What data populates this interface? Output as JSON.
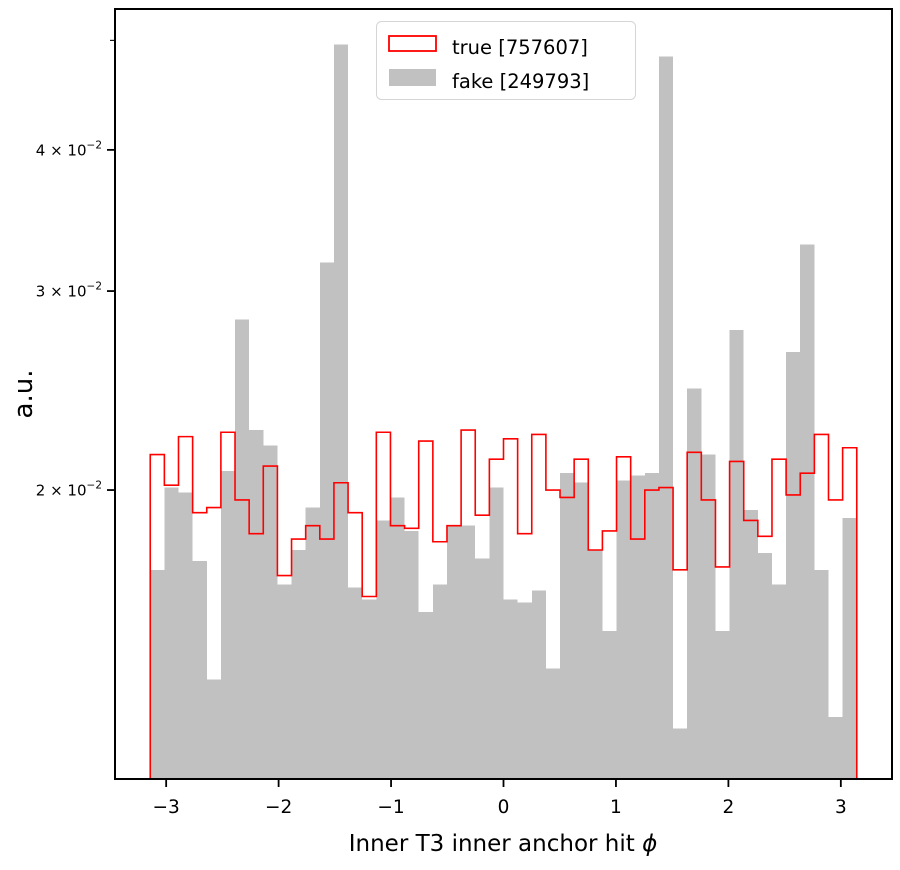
{
  "chart_data": {
    "type": "bar",
    "subtype": "histogram-step-and-filled",
    "title": "",
    "xlabel": "Inner T3 inner anchor hit ",
    "xlabel_symbol": "ϕ",
    "ylabel": "a.u.",
    "x_scale": "linear",
    "y_scale": "log",
    "xlim": [
      -3.455,
      3.455
    ],
    "ylim": [
      0.0111,
      0.0533
    ],
    "bin_start": -3.14159,
    "bin_end": 3.14159,
    "n_bins": 50,
    "grid": "off",
    "legend_position": "upper center",
    "x_ticks": [
      {
        "v": -3,
        "label": "−3"
      },
      {
        "v": -2,
        "label": "−2"
      },
      {
        "v": -1,
        "label": "−1"
      },
      {
        "v": 0,
        "label": "0"
      },
      {
        "v": 1,
        "label": "1"
      },
      {
        "v": 2,
        "label": "2"
      },
      {
        "v": 3,
        "label": "3"
      }
    ],
    "y_ticks": [
      {
        "v": 0.02,
        "mantissa": "2",
        "base": " × 10",
        "exponent": "−2"
      },
      {
        "v": 0.03,
        "mantissa": "3",
        "base": " × 10",
        "exponent": "−2"
      },
      {
        "v": 0.04,
        "mantissa": "4",
        "base": " × 10",
        "exponent": "−2"
      }
    ],
    "y_minor_ticks": [
      0.05
    ],
    "series": [
      {
        "name": "true",
        "legend_label": "true [757607]",
        "count": 757607,
        "style": "step-outline",
        "color": "#ff0000",
        "values": [
          0.0215,
          0.0202,
          0.0223,
          0.0191,
          0.0193,
          0.0225,
          0.0196,
          0.0183,
          0.021,
          0.0168,
          0.0181,
          0.0186,
          0.0181,
          0.0203,
          0.0191,
          0.0161,
          0.0225,
          0.0186,
          0.0185,
          0.0221,
          0.018,
          0.0186,
          0.0226,
          0.019,
          0.0213,
          0.0222,
          0.0183,
          0.0224,
          0.02,
          0.0197,
          0.0213,
          0.0177,
          0.0184,
          0.0214,
          0.0181,
          0.02,
          0.0201,
          0.017,
          0.0216,
          0.0196,
          0.0171,
          0.0212,
          0.0188,
          0.0182,
          0.0213,
          0.0198,
          0.0207,
          0.0224,
          0.0196,
          0.0218
        ]
      },
      {
        "name": "fake",
        "legend_label": "fake [249793]",
        "count": 249793,
        "style": "filled-bar",
        "color": "#c1c1c1",
        "values": [
          0.017,
          0.0201,
          0.0199,
          0.0173,
          0.0136,
          0.0208,
          0.0283,
          0.0226,
          0.0219,
          0.0165,
          0.0177,
          0.0193,
          0.0318,
          0.0496,
          0.0164,
          0.016,
          0.0188,
          0.0197,
          0.0184,
          0.0156,
          0.0165,
          0.0186,
          0.0186,
          0.0174,
          0.0201,
          0.016,
          0.0159,
          0.0163,
          0.0139,
          0.0207,
          0.0203,
          0.0177,
          0.015,
          0.0204,
          0.0206,
          0.0207,
          0.0484,
          0.0123,
          0.0246,
          0.0215,
          0.015,
          0.0277,
          0.0192,
          0.0176,
          0.0165,
          0.0265,
          0.033,
          0.017,
          0.0126,
          0.0189
        ]
      }
    ],
    "colors": {
      "spine": "#000000",
      "background": "#ffffff",
      "legend_border": "#d5d5d5"
    }
  }
}
